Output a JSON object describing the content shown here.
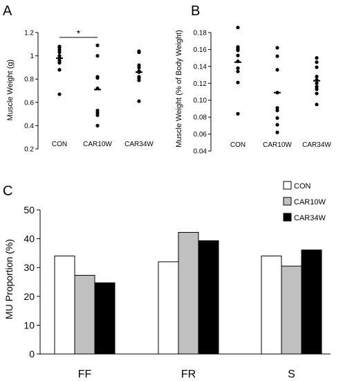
{
  "panels": {
    "A": "A",
    "B": "B",
    "C": "C"
  },
  "chart_data": [
    {
      "panel": "A",
      "type": "scatter",
      "ylabel": "Muscle Weight (g)",
      "ylim": [
        0.2,
        1.2
      ],
      "yticks": [
        "0.2",
        "0.4",
        "0.6",
        "0.8",
        "1",
        "1.2"
      ],
      "categories": [
        "CON",
        "CAR10W",
        "CAR34W"
      ],
      "points": [
        [
          1.08,
          1.07,
          1.05,
          1.03,
          1.0,
          0.98,
          0.96,
          0.94,
          0.88,
          0.67
        ],
        [
          1.09,
          1.0,
          0.82,
          0.81,
          0.72,
          0.53,
          0.51,
          0.49,
          0.4
        ],
        [
          1.04,
          1.03,
          0.92,
          0.9,
          0.87,
          0.86,
          0.82,
          0.81,
          0.79,
          0.61
        ]
      ],
      "means": [
        0.98,
        0.71,
        0.86
      ],
      "significance": {
        "from": 0,
        "to": 1,
        "label": "*"
      }
    },
    {
      "panel": "B",
      "type": "scatter",
      "ylabel": "Muscle Weight (% of Body Weight)",
      "ylim": [
        0.04,
        0.18
      ],
      "yticks": [
        "0.04",
        "0.06",
        "0.08",
        "0.10",
        "0.12",
        "0.14",
        "0.16",
        "0.18"
      ],
      "categories": [
        "CON",
        "CAR10W",
        "CAR34W"
      ],
      "points": [
        [
          0.186,
          0.163,
          0.161,
          0.159,
          0.153,
          0.146,
          0.138,
          0.134,
          0.121,
          0.084
        ],
        [
          0.162,
          0.152,
          0.136,
          0.109,
          0.091,
          0.088,
          0.079,
          0.071,
          0.062
        ],
        [
          0.15,
          0.145,
          0.139,
          0.128,
          0.124,
          0.12,
          0.116,
          0.113,
          0.108,
          0.095
        ]
      ],
      "means": [
        0.145,
        0.109,
        0.123
      ]
    },
    {
      "panel": "C",
      "type": "bar",
      "ylabel": "MU Proportion (%)",
      "ylim": [
        0,
        50
      ],
      "yticks": [
        "0",
        "10",
        "20",
        "30",
        "40",
        "50"
      ],
      "categories": [
        "FF",
        "FR",
        "S"
      ],
      "series": [
        {
          "name": "CON",
          "color": "#ffffff",
          "values": [
            34,
            32,
            34
          ]
        },
        {
          "name": "CAR10W",
          "color": "#c0c0c0",
          "values": [
            27.3,
            42.2,
            30.5
          ]
        },
        {
          "name": "CAR34W",
          "color": "#000000",
          "values": [
            24.7,
            39.3,
            36.1
          ]
        }
      ]
    }
  ]
}
